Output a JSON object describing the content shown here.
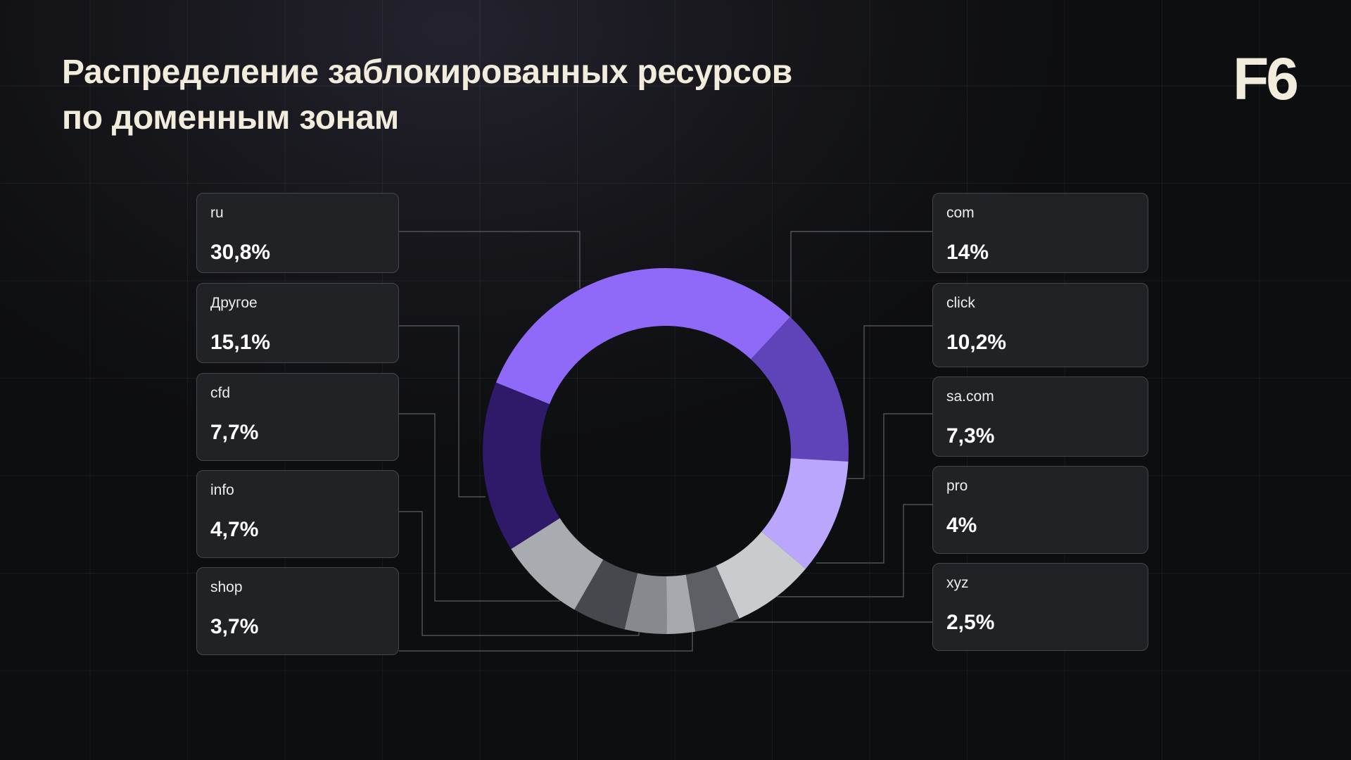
{
  "header": {
    "title_line1": "Распределение заблокированных ресурсов",
    "title_line2": "по доменным зонам",
    "logo": "F6"
  },
  "chart_data": {
    "type": "pie",
    "title": "Распределение заблокированных ресурсов по доменным зонам",
    "series": [
      {
        "label": "ru",
        "display": "30,8%",
        "value": 30.8,
        "color": "#8f6af8"
      },
      {
        "label": "com",
        "display": "14%",
        "value": 14.0,
        "color": "#5f43b8"
      },
      {
        "label": "click",
        "display": "10,2%",
        "value": 10.2,
        "color": "#baa6fd"
      },
      {
        "label": "sa.com",
        "display": "7,3%",
        "value": 7.3,
        "color": "#c9cbce"
      },
      {
        "label": "pro",
        "display": "4%",
        "value": 4.0,
        "color": "#5c5f63"
      },
      {
        "label": "xyz",
        "display": "2,5%",
        "value": 2.5,
        "color": "#a6a9ad"
      },
      {
        "label": "shop",
        "display": "3,7%",
        "value": 3.7,
        "color": "#86898d"
      },
      {
        "label": "info",
        "display": "4,7%",
        "value": 4.7,
        "color": "#45484c"
      },
      {
        "label": "cfd",
        "display": "7,7%",
        "value": 7.7,
        "color": "#a8abaf"
      },
      {
        "label": "Другое",
        "display": "15,1%",
        "value": 15.1,
        "color": "#2f1a6a"
      }
    ]
  }
}
